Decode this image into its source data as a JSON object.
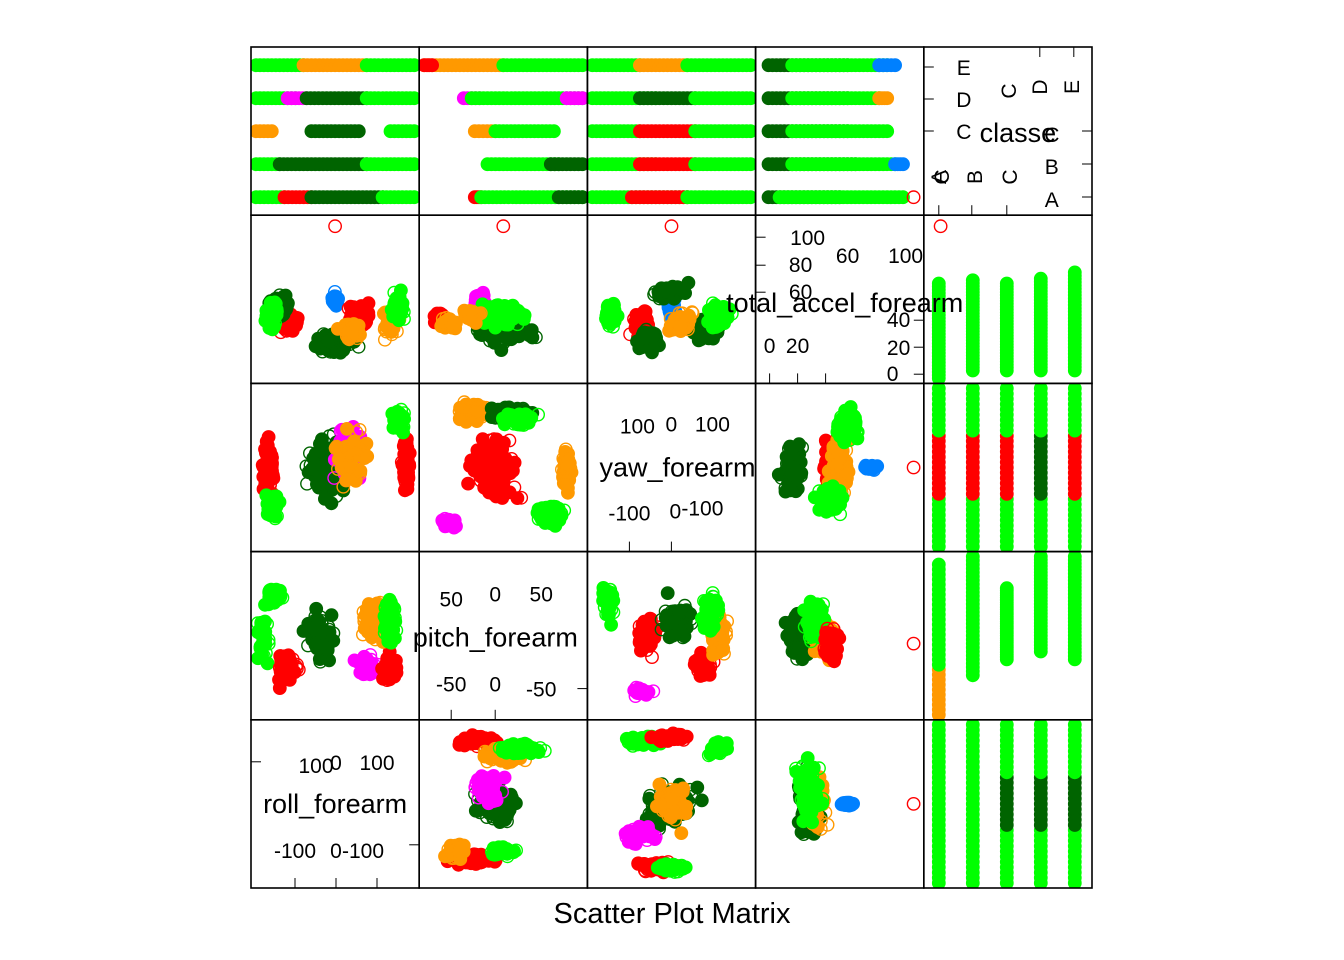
{
  "chart_data": {
    "type": "scatter",
    "subtype": "scatter-plot-matrix",
    "xlabel": "Scatter Plot Matrix",
    "title": "",
    "grid": false,
    "legend": "none",
    "class_colors": {
      "A": "#ff0000",
      "B": "#ff00ff",
      "C": "#0080ff",
      "D": "#006400",
      "E": "#ff9900",
      "F": "#00ff00"
    },
    "variables": [
      {
        "name": "roll_forearm",
        "range": [
          -180,
          180
        ],
        "axis_upper": [
          "-",
          "100",
          "0",
          "100"
        ],
        "axis_lower": [
          "-100",
          "0",
          "-100"
        ]
      },
      {
        "name": "pitch_forearm",
        "range": [
          -72,
          88
        ],
        "axis_upper": [
          "50",
          "0",
          "50"
        ],
        "axis_lower": [
          "-50",
          "0",
          "-50"
        ]
      },
      {
        "name": "yaw_forearm",
        "range": [
          -180,
          180
        ],
        "axis_upper": [
          "100",
          "0",
          "100"
        ],
        "axis_lower": [
          "-100",
          "0",
          "-100"
        ]
      },
      {
        "name": "total_accel_forearm",
        "range": [
          0,
          108
        ],
        "axis_upper": [
          "100",
          "80",
          "60",
          "60",
          "100"
        ],
        "axis_lower": [
          "0",
          "20",
          "40",
          "20",
          "0"
        ]
      },
      {
        "name": "classe",
        "levels": [
          "A",
          "B",
          "C",
          "D",
          "E"
        ],
        "axis_upper": [
          "E",
          "D",
          "C",
          "C",
          "D",
          "E"
        ],
        "axis_lower": [
          "A",
          "B",
          "C",
          "C",
          "B",
          "A"
        ]
      }
    ],
    "outlier_point": {
      "total_accel_forearm": 108,
      "classe": "A"
    },
    "classe_ranges": {
      "total_accel_forearm": [
        [
          0,
          60
        ],
        [
          5,
          62
        ],
        [
          5,
          60
        ],
        [
          5,
          63
        ],
        [
          5,
          67
        ]
      ],
      "pitch_forearm": [
        [
          -72,
          88
        ],
        [
          -45,
          85
        ],
        [
          -30,
          55
        ],
        [
          -15,
          88
        ],
        [
          -15,
          88
        ]
      ]
    }
  }
}
